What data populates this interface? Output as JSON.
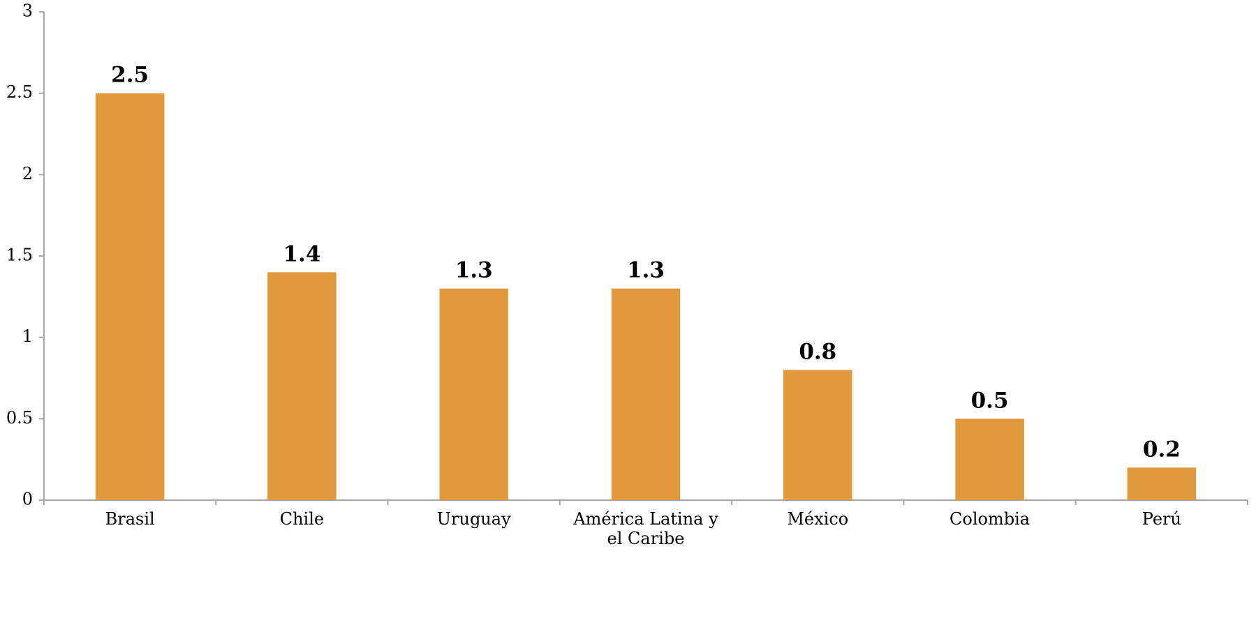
{
  "chart_data": {
    "type": "bar",
    "categories": [
      [
        "Brasil"
      ],
      [
        "Chile"
      ],
      [
        "Uruguay"
      ],
      [
        "América Latina y",
        "el Caribe"
      ],
      [
        "México"
      ],
      [
        "Colombia"
      ],
      [
        "Perú"
      ]
    ],
    "values": [
      2.5,
      1.4,
      1.3,
      1.3,
      0.8,
      0.5,
      0.2
    ],
    "data_labels": [
      "2.5",
      "1.4",
      "1.3",
      "1.3",
      "0.8",
      "0.5",
      "0.2"
    ],
    "y_ticks": [
      "0",
      "0.5",
      "1",
      "1.5",
      "2",
      "2.5",
      "3"
    ],
    "ylim": [
      0,
      3
    ],
    "grid": false,
    "legend": "none",
    "bar_color": "#E0993C",
    "axis_color": "#A6A6A6",
    "title": "",
    "xlabel": "",
    "ylabel": ""
  }
}
